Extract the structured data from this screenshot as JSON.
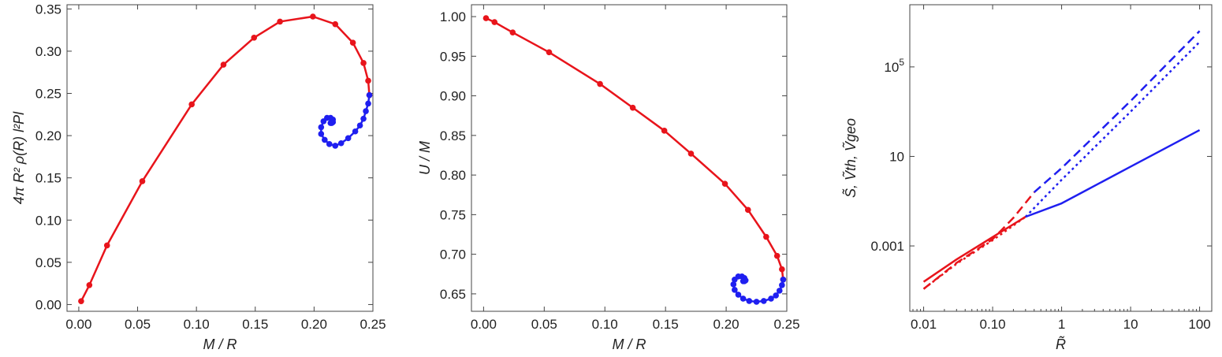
{
  "chart_data": [
    {
      "type": "line",
      "xlabel": "M / R",
      "ylabel": "4π R² ρ(R) l²Pl",
      "xlim": [
        -0.01,
        0.25
      ],
      "ylim": [
        -0.008,
        0.355
      ],
      "xticks": [
        0.0,
        0.05,
        0.1,
        0.15,
        0.2,
        0.25
      ],
      "xtick_labels": [
        "0.00",
        "0.05",
        "0.10",
        "0.15",
        "0.20",
        "0.25"
      ],
      "yticks": [
        0.0,
        0.05,
        0.1,
        0.15,
        0.2,
        0.25,
        0.3,
        0.35
      ],
      "ytick_labels": [
        "0.00",
        "0.05",
        "0.10",
        "0.15",
        "0.20",
        "0.25",
        "0.30",
        "0.35"
      ],
      "grid": false,
      "series": [
        {
          "color": "#e8141b",
          "markers": true,
          "x": [
            0.002,
            0.009,
            0.024,
            0.054,
            0.096,
            0.123,
            0.149,
            0.171,
            0.199,
            0.218,
            0.233,
            0.242,
            0.246,
            0.247
          ],
          "y": [
            0.004,
            0.023,
            0.07,
            0.146,
            0.237,
            0.284,
            0.316,
            0.335,
            0.341,
            0.332,
            0.31,
            0.286,
            0.265,
            0.248
          ]
        },
        {
          "color": "#1f1ff0",
          "markers": true,
          "x": [
            0.247,
            0.246,
            0.244,
            0.242,
            0.239,
            0.235,
            0.229,
            0.223,
            0.218,
            0.213,
            0.209,
            0.206,
            0.206,
            0.208,
            0.211,
            0.214,
            0.216,
            0.216,
            0.215,
            0.214
          ],
          "y": [
            0.248,
            0.238,
            0.229,
            0.22,
            0.212,
            0.205,
            0.197,
            0.191,
            0.188,
            0.19,
            0.195,
            0.202,
            0.21,
            0.217,
            0.221,
            0.221,
            0.219,
            0.216,
            0.215,
            0.215
          ]
        }
      ]
    },
    {
      "type": "line",
      "xlabel": "M / R",
      "ylabel": "U / M",
      "xlim": [
        -0.01,
        0.25
      ],
      "ylim": [
        0.628,
        1.015
      ],
      "xticks": [
        0.0,
        0.05,
        0.1,
        0.15,
        0.2,
        0.25
      ],
      "xtick_labels": [
        "0.00",
        "0.05",
        "0.10",
        "0.15",
        "0.20",
        "0.25"
      ],
      "yticks": [
        0.65,
        0.7,
        0.75,
        0.8,
        0.85,
        0.9,
        0.95,
        1.0
      ],
      "ytick_labels": [
        "0.65",
        "0.70",
        "0.75",
        "0.80",
        "0.85",
        "0.90",
        "0.95",
        "1.00"
      ],
      "grid": false,
      "series": [
        {
          "color": "#e8141b",
          "markers": true,
          "x": [
            0.002,
            0.009,
            0.024,
            0.054,
            0.096,
            0.123,
            0.149,
            0.171,
            0.199,
            0.218,
            0.233,
            0.242,
            0.246,
            0.247
          ],
          "y": [
            0.998,
            0.993,
            0.98,
            0.955,
            0.915,
            0.885,
            0.856,
            0.827,
            0.789,
            0.756,
            0.722,
            0.698,
            0.681,
            0.668
          ]
        },
        {
          "color": "#1f1ff0",
          "markers": true,
          "x": [
            0.247,
            0.246,
            0.244,
            0.241,
            0.237,
            0.231,
            0.225,
            0.219,
            0.214,
            0.21,
            0.207,
            0.206,
            0.207,
            0.21,
            0.213,
            0.215,
            0.216,
            0.215,
            0.214
          ],
          "y": [
            0.668,
            0.661,
            0.654,
            0.648,
            0.644,
            0.641,
            0.64,
            0.641,
            0.644,
            0.649,
            0.655,
            0.662,
            0.668,
            0.672,
            0.672,
            0.67,
            0.667,
            0.666,
            0.666
          ]
        }
      ]
    },
    {
      "type": "line",
      "xlabel": "R̃",
      "ylabel": "S̃, Ṽth, Ṽgeo",
      "xscale": "log",
      "yscale": "log",
      "xlim": [
        0.0063,
        150
      ],
      "ylim": [
        1.2e-06,
        60000000
      ],
      "xticks": [
        0.01,
        0.1,
        1,
        10,
        100
      ],
      "xtick_labels": [
        "0.01",
        "0.10",
        "1",
        "10",
        "100"
      ],
      "yticks": [
        0.001,
        10,
        100000
      ],
      "ytick_labels": [
        "0.001",
        "10",
        "10⁵"
      ],
      "grid": false,
      "series": [
        {
          "color": "#e8141b",
          "dash": "solid",
          "x": [
            0.01,
            0.03,
            0.1,
            0.3
          ],
          "y": [
            2.5e-05,
            0.00025,
            0.0025,
            0.02
          ]
        },
        {
          "color": "#e8141b",
          "dash": "dashed",
          "x": [
            0.01,
            0.03,
            0.1,
            0.2,
            0.4
          ],
          "y": [
            1.2e-05,
            0.000175,
            0.002,
            0.018,
            0.25
          ]
        },
        {
          "color": "#e8141b",
          "dash": "dotted",
          "x": [
            0.01,
            0.03,
            0.1,
            0.3
          ],
          "y": [
            1.2e-05,
            0.00016,
            0.0018,
            0.02
          ]
        },
        {
          "color": "#1f1ff0",
          "dash": "solid",
          "x": [
            0.3,
            1,
            2,
            10,
            100
          ],
          "y": [
            0.02,
            0.08,
            0.25,
            3.5,
            150
          ]
        },
        {
          "color": "#1f1ff0",
          "dash": "dashed",
          "x": [
            0.4,
            1,
            10,
            100
          ],
          "y": [
            0.25,
            3,
            3000,
            4000000
          ]
        },
        {
          "color": "#1f1ff0",
          "dash": "dotted",
          "x": [
            0.3,
            1,
            10,
            100
          ],
          "y": [
            0.02,
            0.9,
            1000,
            1300000
          ]
        }
      ]
    }
  ]
}
